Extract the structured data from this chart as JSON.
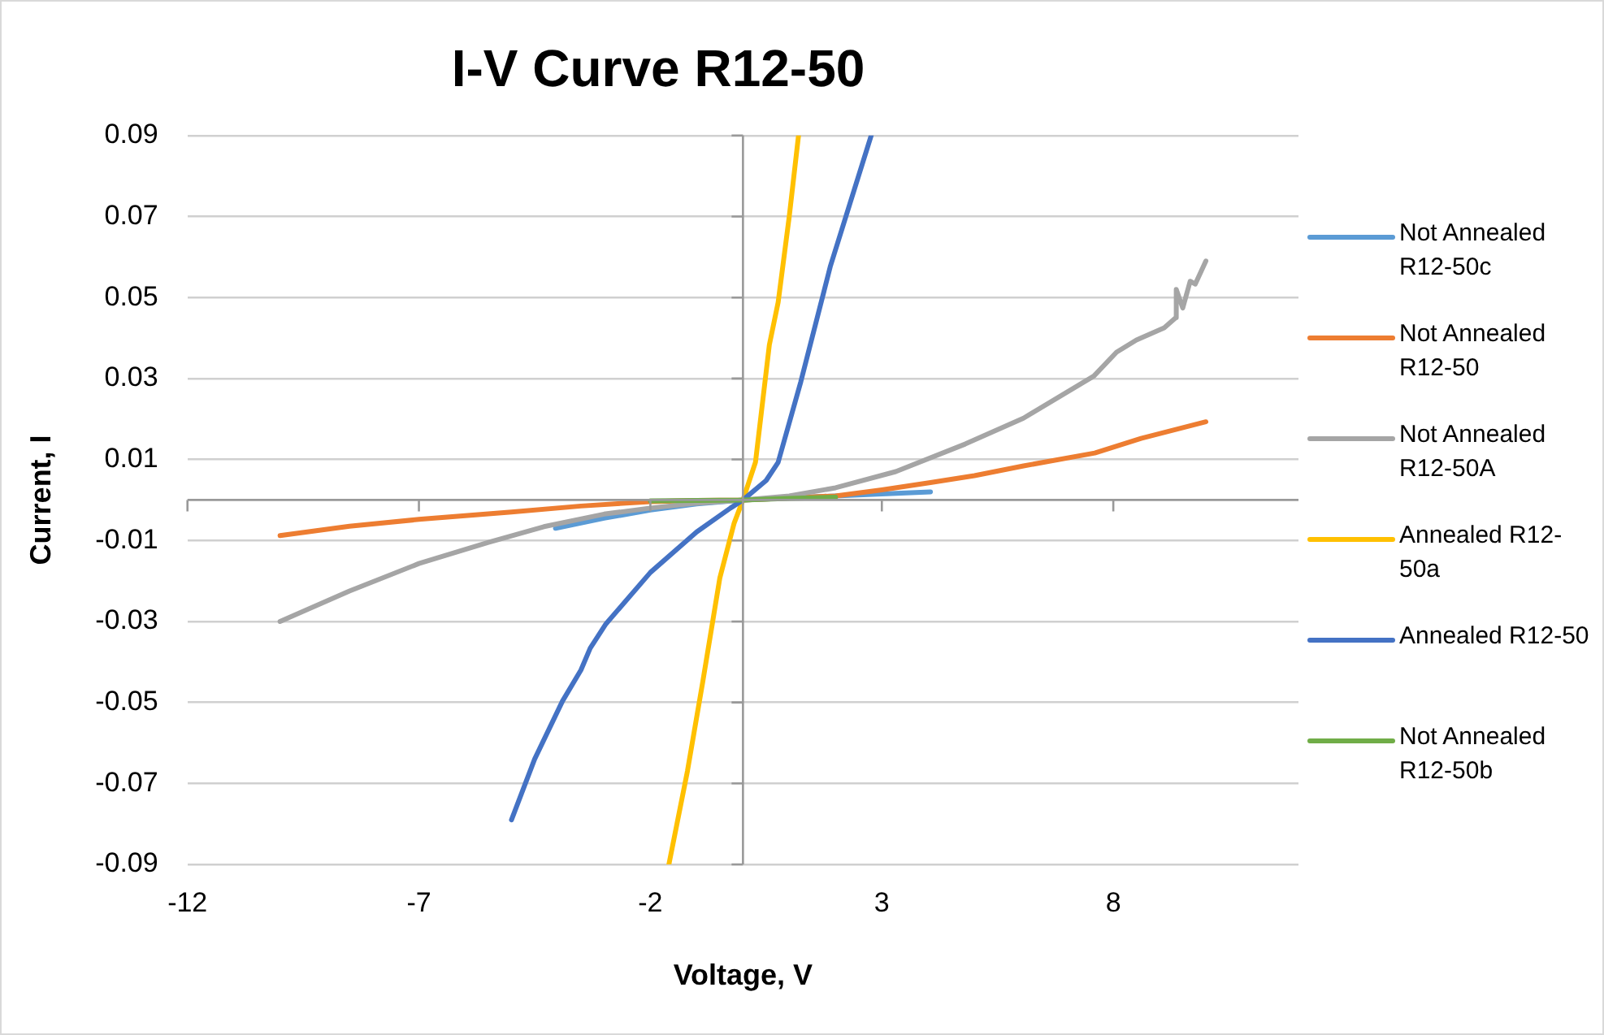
{
  "chart_data": {
    "type": "line",
    "title": "I-V Curve R12-50",
    "xlabel": "Voltage, V",
    "ylabel": "Current, I",
    "xlim": [
      -12,
      12
    ],
    "xticks": [
      -12,
      -7,
      -2,
      3,
      8
    ],
    "ylim": [
      -0.09,
      0.09
    ],
    "yticks": [
      -0.09,
      -0.07,
      -0.05,
      -0.03,
      -0.01,
      0.01,
      0.03,
      0.05,
      0.07,
      0.09
    ],
    "grid": "y",
    "legend": "right",
    "marker": "none",
    "line_style": "solid",
    "series": [
      {
        "name": "Not Annealed R12-50c",
        "color": "#5b9bd5",
        "x": [
          -4.05,
          -3,
          -2,
          -1,
          0,
          1,
          2,
          3,
          4.05
        ],
        "values": [
          -0.007,
          -0.0045,
          -0.0025,
          -0.001,
          0,
          0.0005,
          0.001,
          0.0015,
          0.002
        ]
      },
      {
        "name": "Not Annealed R12-50",
        "color": "#ed7d31",
        "x": [
          -10,
          -8.5,
          -7,
          -5,
          -3.5,
          -2,
          -1,
          0,
          1,
          2,
          3,
          4.05,
          5,
          6.06,
          7.6,
          8.6,
          10
        ],
        "values": [
          -0.0088,
          -0.0065,
          -0.0048,
          -0.003,
          -0.0015,
          -0.0004,
          -0.0001,
          0,
          0.0005,
          0.001,
          0.0025,
          0.0043,
          0.006,
          0.0084,
          0.0116,
          0.0152,
          0.0193
        ]
      },
      {
        "name": "Not Annealed R12-50A",
        "color": "#a5a5a5",
        "x": [
          -10,
          -8.5,
          -7,
          -5.5,
          -4.3,
          -3,
          -2,
          -1,
          0,
          1,
          2,
          3.3,
          4.8,
          6.06,
          7.58,
          8.07,
          8.5,
          8.8,
          9.1,
          9.35,
          9.36,
          9.5,
          9.66,
          9.77,
          10
        ],
        "values": [
          -0.03,
          -0.0225,
          -0.0157,
          -0.0105,
          -0.0066,
          -0.0035,
          -0.002,
          -0.0008,
          0,
          0.001,
          0.003,
          0.007,
          0.0138,
          0.0202,
          0.0306,
          0.0365,
          0.0395,
          0.041,
          0.0425,
          0.045,
          0.052,
          0.0474,
          0.054,
          0.0533,
          0.059
        ]
      },
      {
        "name": "Annealed R12-50a",
        "color": "#ffc000",
        "x": [
          -1.6,
          -1.2,
          -0.87,
          -0.5,
          -0.19,
          0,
          0.27,
          0.57,
          0.76,
          1,
          1.2
        ],
        "values": [
          -0.09,
          -0.067,
          -0.045,
          -0.0193,
          -0.0057,
          0,
          0.0093,
          0.0383,
          0.0488,
          0.07,
          0.09
        ]
      },
      {
        "name": "Annealed R12-50",
        "color": "#4472c4",
        "x": [
          -5,
          -4.5,
          -3.9,
          -3.5,
          -3.3,
          -2.96,
          -2,
          -1,
          -0.27,
          0,
          0.5,
          0.76,
          1.25,
          1.89,
          2.77
        ],
        "values": [
          -0.079,
          -0.064,
          -0.0497,
          -0.042,
          -0.0366,
          -0.0306,
          -0.0179,
          -0.0079,
          -0.002,
          0,
          0.0048,
          0.0093,
          0.0292,
          0.0578,
          0.09
        ]
      },
      {
        "name": "Not Annealed R12-50b",
        "color": "#70ad47",
        "x": [
          -2,
          -1,
          0,
          1,
          2
        ],
        "values": [
          -0.0002,
          -0.0001,
          0,
          0.0004,
          0.0007
        ]
      }
    ]
  }
}
